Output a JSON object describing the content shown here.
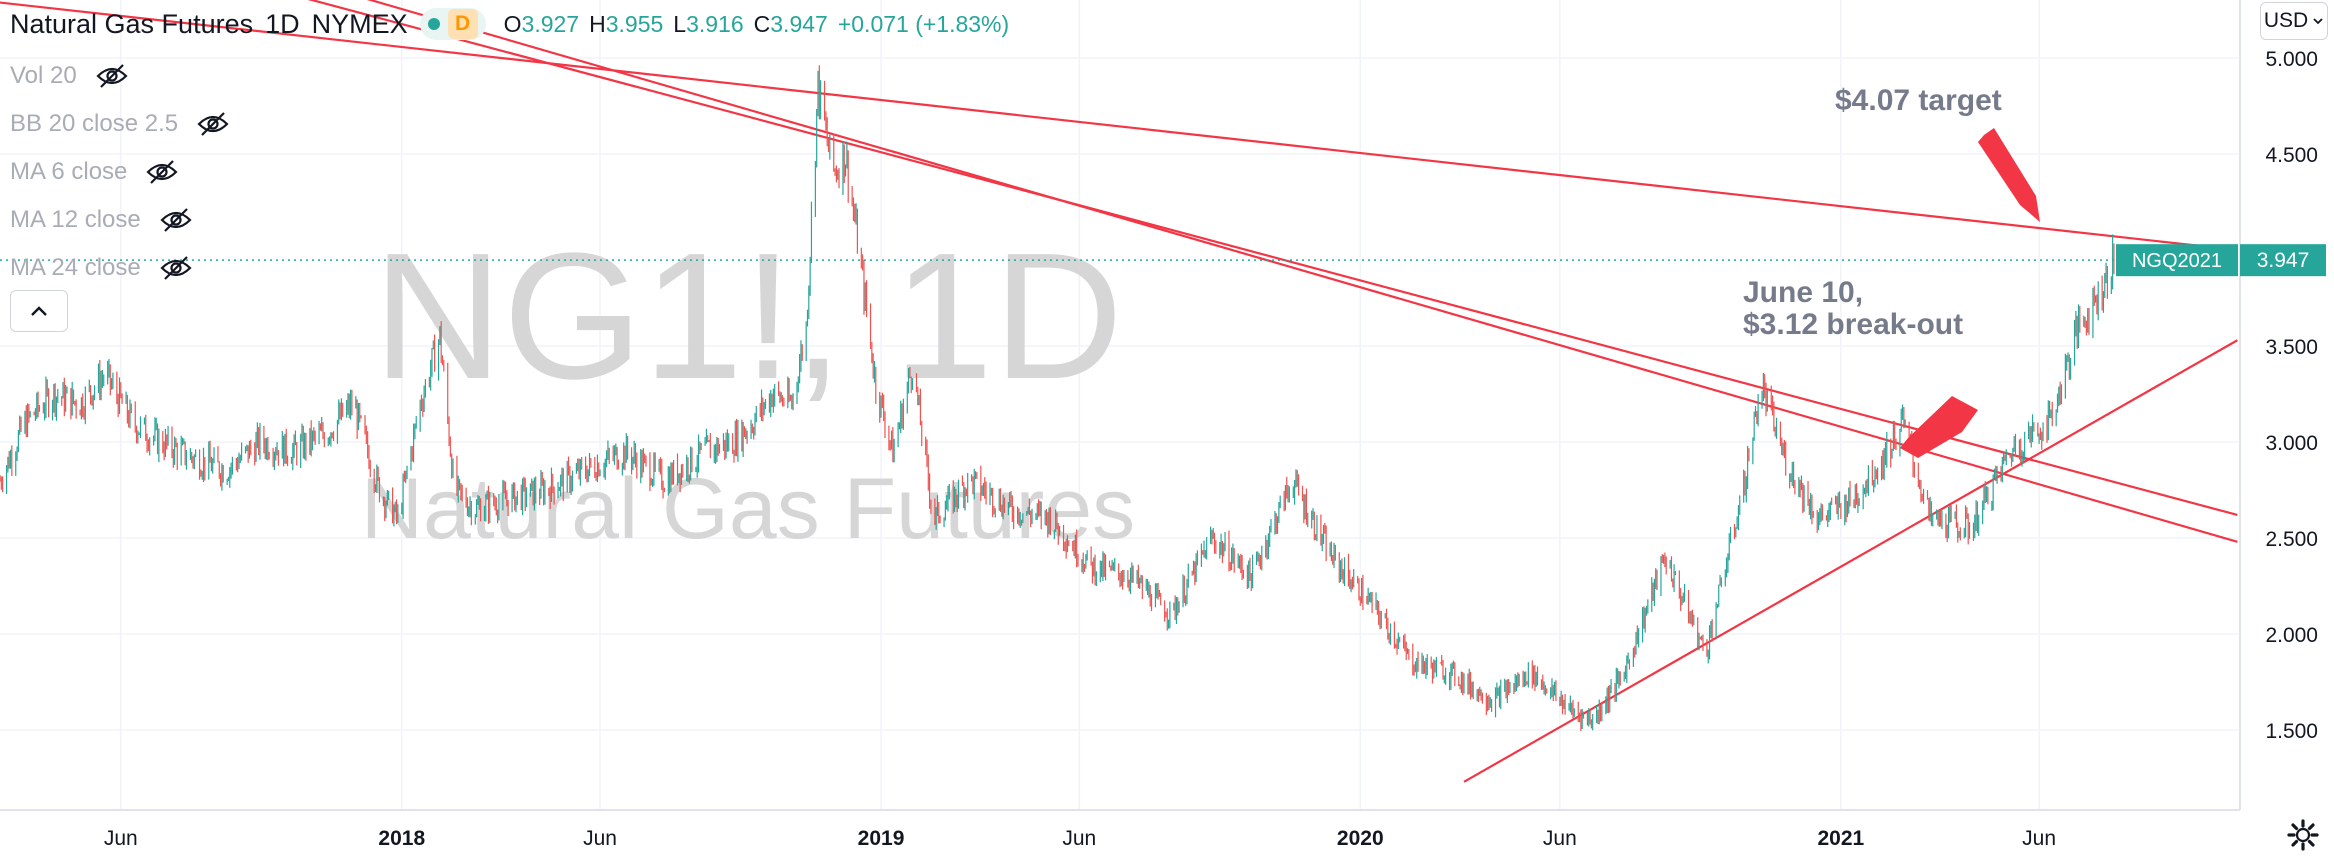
{
  "header": {
    "symbol": "Natural Gas Futures",
    "interval": "1D",
    "exchange": "NYMEX",
    "status_badge": "D",
    "ohlc": {
      "o_label": "O",
      "o": "3.927",
      "h_label": "H",
      "h": "3.955",
      "l_label": "L",
      "l": "3.916",
      "c_label": "C",
      "c": "3.947",
      "change": "+0.071 (+1.83%)"
    }
  },
  "indicators": [
    {
      "label": "Vol 20"
    },
    {
      "label": "BB 20 close 2.5"
    },
    {
      "label": "MA 6 close"
    },
    {
      "label": "MA 12 close"
    },
    {
      "label": "MA 24 close"
    }
  ],
  "currency": "USD",
  "chart_data": {
    "type": "line",
    "watermark_symbol": "NG1!, 1D",
    "watermark_name": "Natural Gas Futures",
    "y_axis": {
      "ticks": [
        "5.000",
        "4.500",
        "3.500",
        "3.000",
        "2.500",
        "2.000",
        "1.500"
      ],
      "ylim": [
        1.1,
        5.2
      ],
      "position": "right"
    },
    "x_axis": {
      "ticks": [
        "Jun",
        "2018",
        "Jun",
        "2019",
        "Jun",
        "2020",
        "Jun",
        "2021",
        "Jun"
      ],
      "bold_ticks": [
        "2018",
        "2019",
        "2020",
        "2021"
      ]
    },
    "last_price": {
      "symbol": "NGQ2021",
      "value": 3.947,
      "label": "3.947"
    },
    "series": [
      {
        "values": [
          [
            "2017-03-01",
            2.8
          ],
          [
            "2017-03-20",
            3.1
          ],
          [
            "2017-04-10",
            3.25
          ],
          [
            "2017-05-01",
            3.2
          ],
          [
            "2017-05-20",
            3.35
          ],
          [
            "2017-06-10",
            3.1
          ],
          [
            "2017-07-01",
            3.0
          ],
          [
            "2017-07-25",
            2.92
          ],
          [
            "2017-08-20",
            2.85
          ],
          [
            "2017-09-15",
            3.0
          ],
          [
            "2017-10-10",
            2.95
          ],
          [
            "2017-11-05",
            3.05
          ],
          [
            "2017-11-25",
            3.2
          ],
          [
            "2017-12-15",
            2.75
          ],
          [
            "2017-12-29",
            2.6
          ],
          [
            "2018-01-15",
            3.2
          ],
          [
            "2018-01-30",
            3.55
          ],
          [
            "2018-02-10",
            2.75
          ],
          [
            "2018-02-25",
            2.65
          ],
          [
            "2018-03-20",
            2.7
          ],
          [
            "2018-04-20",
            2.75
          ],
          [
            "2018-05-20",
            2.85
          ],
          [
            "2018-06-20",
            2.95
          ],
          [
            "2018-07-20",
            2.8
          ],
          [
            "2018-08-20",
            2.95
          ],
          [
            "2018-09-10",
            3.0
          ],
          [
            "2018-09-25",
            3.1
          ],
          [
            "2018-10-10",
            3.25
          ],
          [
            "2018-10-25",
            3.2
          ],
          [
            "2018-11-05",
            3.6
          ],
          [
            "2018-11-14",
            4.85
          ],
          [
            "2018-11-25",
            4.4
          ],
          [
            "2018-12-05",
            4.5
          ],
          [
            "2018-12-15",
            4.0
          ],
          [
            "2018-12-28",
            3.3
          ],
          [
            "2019-01-10",
            2.95
          ],
          [
            "2019-01-25",
            3.4
          ],
          [
            "2019-02-10",
            2.6
          ],
          [
            "2019-03-10",
            2.8
          ],
          [
            "2019-04-10",
            2.65
          ],
          [
            "2019-05-10",
            2.6
          ],
          [
            "2019-06-10",
            2.35
          ],
          [
            "2019-07-10",
            2.3
          ],
          [
            "2019-08-10",
            2.1
          ],
          [
            "2019-09-10",
            2.5
          ],
          [
            "2019-10-10",
            2.3
          ],
          [
            "2019-11-10",
            2.8
          ],
          [
            "2019-12-10",
            2.4
          ],
          [
            "2020-01-10",
            2.15
          ],
          [
            "2020-02-10",
            1.85
          ],
          [
            "2020-03-10",
            1.8
          ],
          [
            "2020-04-10",
            1.65
          ],
          [
            "2020-05-10",
            1.8
          ],
          [
            "2020-06-10",
            1.6
          ],
          [
            "2020-06-26",
            1.55
          ],
          [
            "2020-07-20",
            1.8
          ],
          [
            "2020-08-20",
            2.4
          ],
          [
            "2020-09-20",
            1.9
          ],
          [
            "2020-10-20",
            2.8
          ],
          [
            "2020-11-01",
            3.3
          ],
          [
            "2020-11-20",
            2.9
          ],
          [
            "2020-12-15",
            2.6
          ],
          [
            "2021-01-10",
            2.7
          ],
          [
            "2021-02-01",
            2.9
          ],
          [
            "2021-02-17",
            3.1
          ],
          [
            "2021-03-10",
            2.6
          ],
          [
            "2021-04-10",
            2.55
          ],
          [
            "2021-05-10",
            2.95
          ],
          [
            "2021-06-10",
            3.12
          ],
          [
            "2021-07-01",
            3.6
          ],
          [
            "2021-07-15",
            3.75
          ],
          [
            "2021-07-28",
            3.947
          ]
        ]
      }
    ],
    "trendlines": [
      {
        "from": [
          "2016-12-10",
          5.35
        ],
        "to": [
          "2021-10-30",
          4.0
        ]
      },
      {
        "from": [
          "2017-09-01",
          5.4
        ],
        "to": [
          "2021-10-30",
          2.62
        ]
      },
      {
        "from": [
          "2017-10-20",
          5.4
        ],
        "to": [
          "2021-10-30",
          2.48
        ]
      },
      {
        "from": [
          "2020-03-20",
          1.23
        ],
        "to": [
          "2021-10-30",
          3.53
        ]
      }
    ],
    "annotations": [
      {
        "text": "$4.07 target"
      },
      {
        "line1": "June 10,",
        "line2": "$3.12 break-out"
      }
    ]
  }
}
